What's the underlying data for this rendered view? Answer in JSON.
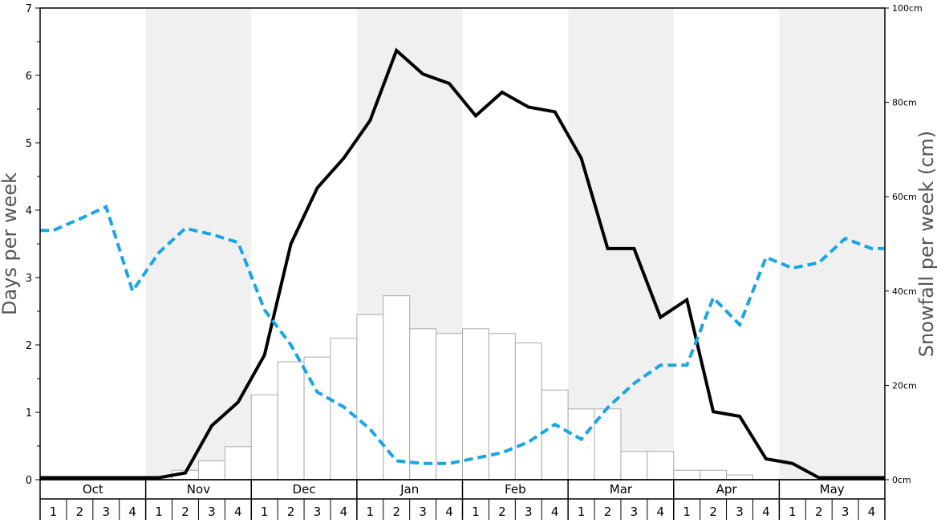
{
  "chart_data": {
    "type": "bar",
    "ylabel_left": "Days per week",
    "ylabel_right": "Snowfall per week (cm)",
    "y_left_range": [
      0,
      7
    ],
    "y_right_range": [
      0,
      100
    ],
    "y_left_ticks": [
      "0",
      "1",
      "2",
      "3",
      "4",
      "5",
      "6",
      "7"
    ],
    "y_right_ticks": [
      "0cm",
      "20cm",
      "40cm",
      "60cm",
      "80cm",
      "100cm"
    ],
    "months": [
      "Oct",
      "Nov",
      "Dec",
      "Jan",
      "Feb",
      "Mar",
      "Apr",
      "May"
    ],
    "week_labels": [
      "1",
      "2",
      "3",
      "4"
    ],
    "shaded_month_bands": [
      "Nov",
      "Jan",
      "Mar",
      "May"
    ],
    "x_weeks": [
      "Oct 1",
      "Oct 2",
      "Oct 3",
      "Oct 4",
      "Nov 1",
      "Nov 2",
      "Nov 3",
      "Nov 4",
      "Dec 1",
      "Dec 2",
      "Dec 3",
      "Dec 4",
      "Jan 1",
      "Jan 2",
      "Jan 3",
      "Jan 4",
      "Feb 1",
      "Feb 2",
      "Feb 3",
      "Feb 4",
      "Mar 1",
      "Mar 2",
      "Mar 3",
      "Mar 4",
      "Apr 1",
      "Apr 2",
      "Apr 3",
      "Apr 4",
      "May 1",
      "May 2",
      "May 3",
      "May 4"
    ],
    "series": [
      {
        "kind": "bars",
        "axis": "right",
        "color": "#ffffff",
        "stroke": "#aaaaaa",
        "values": [
          0,
          0,
          0,
          0,
          0,
          2,
          4,
          7,
          18,
          25,
          26,
          30,
          35,
          39,
          32,
          31,
          32,
          31,
          29,
          19,
          15,
          15,
          6,
          6,
          2,
          2,
          1,
          0,
          0,
          0,
          0,
          0
        ]
      },
      {
        "kind": "line",
        "axis": "left",
        "color": "#000000",
        "values": [
          0.03,
          0.03,
          0.03,
          0.03,
          0.03,
          0.1,
          0.8,
          1.15,
          1.85,
          3.5,
          4.33,
          4.77,
          5.33,
          6.37,
          6.02,
          5.88,
          5.4,
          5.75,
          5.53,
          5.46,
          4.77,
          3.43,
          3.43,
          2.41,
          2.67,
          1.01,
          0.94,
          0.31,
          0.24,
          0.03,
          0.03,
          0.03
        ]
      },
      {
        "kind": "line",
        "axis": "left",
        "style": "dashed",
        "color": "#1aa5e6",
        "values": [
          3.7,
          3.87,
          4.05,
          2.8,
          3.37,
          3.73,
          3.64,
          3.52,
          2.52,
          2.0,
          1.3,
          1.08,
          0.75,
          0.28,
          0.24,
          0.24,
          0.32,
          0.4,
          0.56,
          0.82,
          0.6,
          1.07,
          1.43,
          1.7,
          1.7,
          2.7,
          2.3,
          3.3,
          3.14,
          3.22,
          3.58,
          3.43
        ]
      }
    ],
    "legend": "none",
    "grid": false
  }
}
